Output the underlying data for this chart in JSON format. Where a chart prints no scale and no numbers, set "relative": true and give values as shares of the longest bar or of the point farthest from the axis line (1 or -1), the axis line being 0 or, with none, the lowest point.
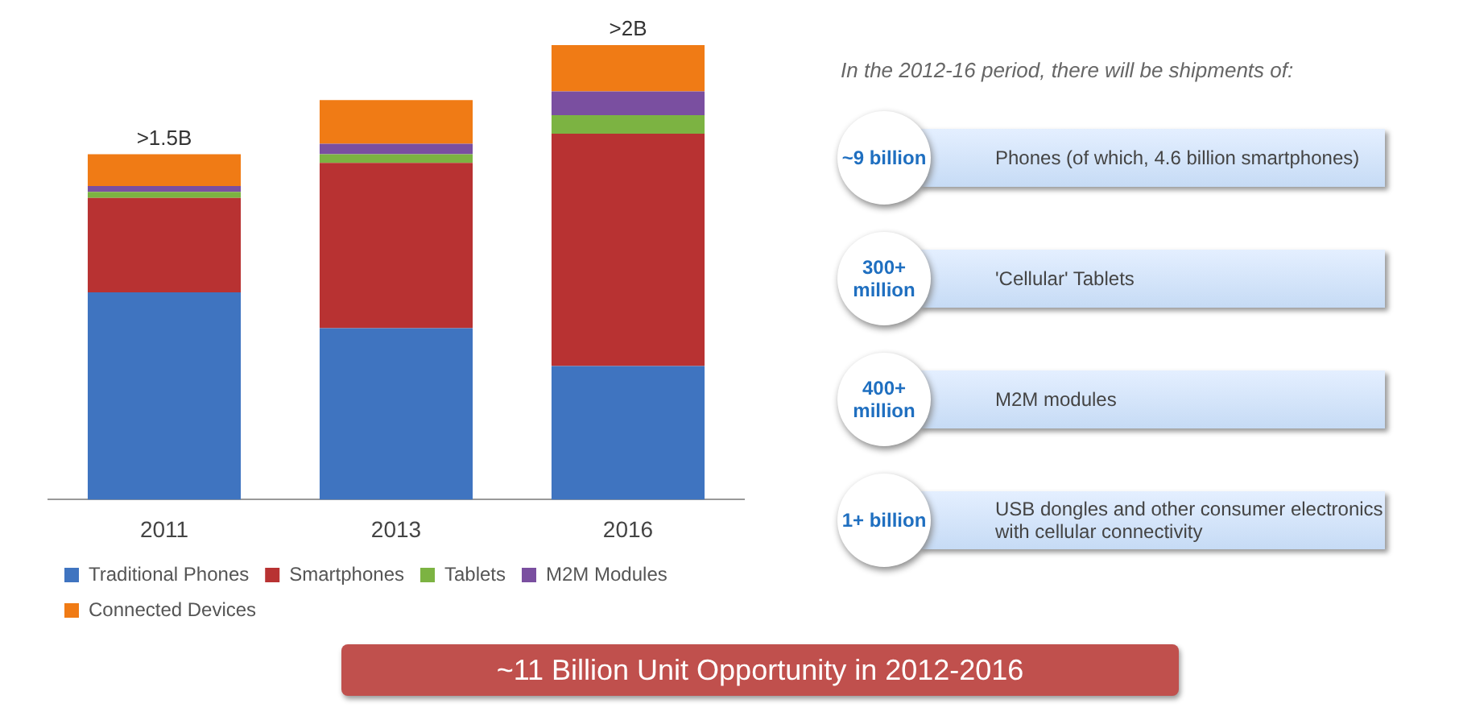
{
  "chart_data": {
    "type": "bar",
    "stacked": true,
    "relative": true,
    "legend": "bottom",
    "categories": [
      "2011",
      "2013",
      "2016"
    ],
    "series": [
      {
        "name": "Traditional Phones",
        "color": "#3f74c0",
        "values": [
          0.456,
          0.377,
          0.294
        ]
      },
      {
        "name": "Smartphones",
        "color": "#b83232",
        "values": [
          0.208,
          0.364,
          0.511
        ]
      },
      {
        "name": "Tablets",
        "color": "#7cb342",
        "values": [
          0.013,
          0.019,
          0.041
        ]
      },
      {
        "name": "M2M Modules",
        "color": "#7a4fa0",
        "values": [
          0.013,
          0.023,
          0.052
        ]
      },
      {
        "name": "Connected Devices",
        "color": "#f07b15",
        "values": [
          0.07,
          0.096,
          0.102
        ]
      }
    ],
    "totals": [
      ">1.5B",
      null,
      ">2B"
    ],
    "annotations": [
      "In the 2012-16 period, there will be shipments of:",
      "~9 billion",
      "Phones (of which, 4.6 billion smartphones)",
      "300+ million",
      "'Cellular' Tablets",
      "400+ million",
      "M2M modules",
      "1+ billion",
      "USB dongles and other consumer electronics with cellular connectivity",
      "~11 Billion Unit Opportunity in 2012-2016"
    ]
  }
}
